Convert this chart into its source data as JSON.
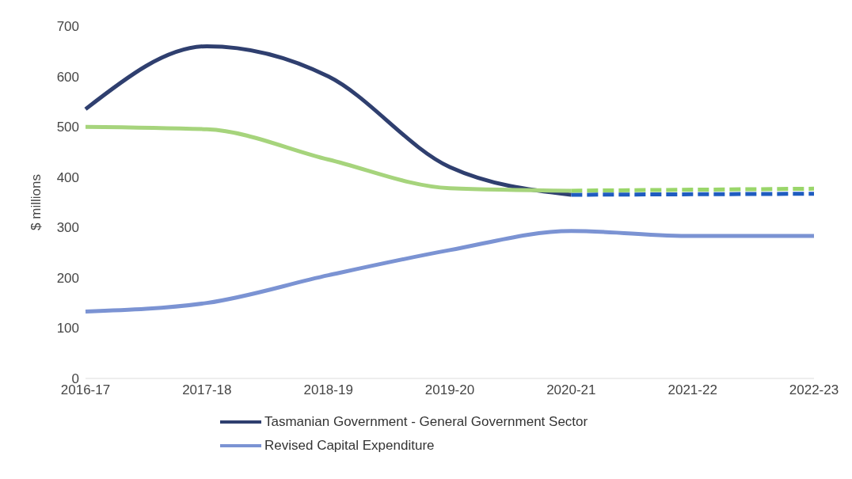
{
  "chart_data": {
    "type": "line",
    "ylabel": "$ millions",
    "categories": [
      "2016-17",
      "2017-18",
      "2018-19",
      "2019-20",
      "2020-21",
      "2021-22",
      "2022-23"
    ],
    "series": [
      {
        "name": "Tasmanian Government - General Government Sector",
        "color": "#2f3f6f",
        "values": [
          535,
          660,
          600,
          420,
          365,
          null,
          null
        ]
      },
      {
        "color": "#a6d47c",
        "values": [
          500,
          495,
          435,
          378,
          373,
          null,
          null
        ]
      },
      {
        "name": "Revised Capital Expenditure",
        "color": "#7b93d3",
        "values": [
          133,
          150,
          205,
          255,
          293,
          283,
          283
        ]
      },
      {
        "color": "#1f5cc0",
        "line_style": "dashed",
        "values": [
          null,
          null,
          null,
          null,
          365,
          366,
          367
        ]
      },
      {
        "color": "#9ad66a",
        "line_style": "dashed",
        "values": [
          null,
          null,
          null,
          null,
          373,
          375,
          377
        ]
      }
    ],
    "ylim": [
      0,
      700
    ],
    "yticks": [
      0,
      100,
      200,
      300,
      400,
      500,
      600,
      700
    ],
    "grid": false,
    "legend": "bottom",
    "marker": "none",
    "line_style": "solid"
  }
}
